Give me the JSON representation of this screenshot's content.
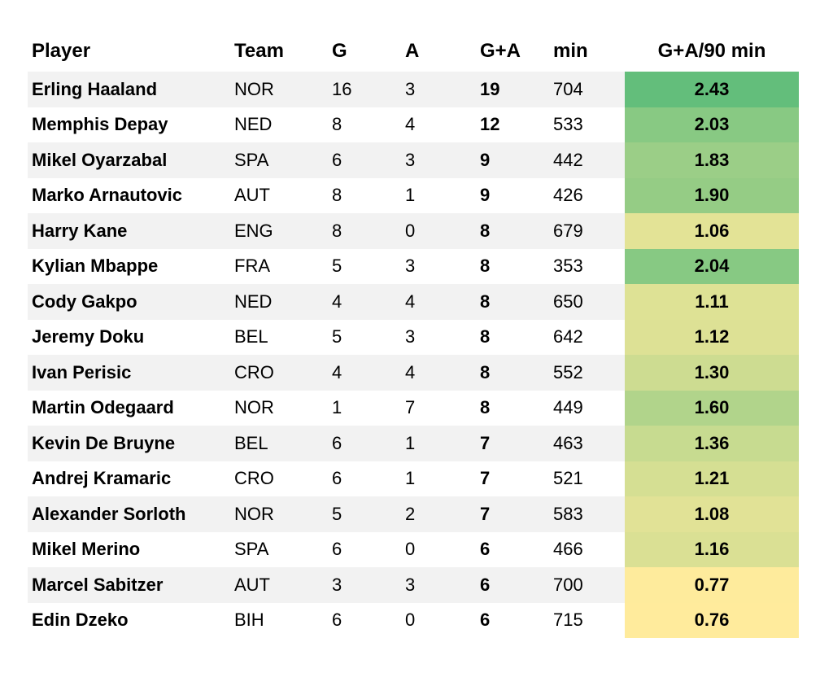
{
  "chart_data": {
    "type": "table",
    "columns": [
      "Player",
      "Team",
      "G",
      "A",
      "G+A",
      "min",
      "G+A/90 min"
    ],
    "rows": [
      [
        "Erling Haaland",
        "NOR",
        16,
        3,
        19,
        704,
        "2.43"
      ],
      [
        "Memphis Depay",
        "NED",
        8,
        4,
        12,
        533,
        "2.03"
      ],
      [
        "Mikel Oyarzabal",
        "SPA",
        6,
        3,
        9,
        442,
        "1.83"
      ],
      [
        "Marko Arnautovic",
        "AUT",
        8,
        1,
        9,
        426,
        "1.90"
      ],
      [
        "Harry Kane",
        "ENG",
        8,
        0,
        8,
        679,
        "1.06"
      ],
      [
        "Kylian Mbappe",
        "FRA",
        5,
        3,
        8,
        353,
        "2.04"
      ],
      [
        "Cody Gakpo",
        "NED",
        4,
        4,
        8,
        650,
        "1.11"
      ],
      [
        "Jeremy Doku",
        "BEL",
        5,
        3,
        8,
        642,
        "1.12"
      ],
      [
        "Ivan Perisic",
        "CRO",
        4,
        4,
        8,
        552,
        "1.30"
      ],
      [
        "Martin Odegaard",
        "NOR",
        1,
        7,
        8,
        449,
        "1.60"
      ],
      [
        "Kevin De Bruyne",
        "BEL",
        6,
        1,
        7,
        463,
        "1.36"
      ],
      [
        "Andrej Kramaric",
        "CRO",
        6,
        1,
        7,
        521,
        "1.21"
      ],
      [
        "Alexander Sorloth",
        "NOR",
        5,
        2,
        7,
        583,
        "1.08"
      ],
      [
        "Mikel Merino",
        "SPA",
        6,
        0,
        6,
        466,
        "1.16"
      ],
      [
        "Marcel Sabitzer",
        "AUT",
        3,
        3,
        6,
        700,
        "0.77"
      ],
      [
        "Edin Dzeko",
        "BIH",
        6,
        0,
        6,
        715,
        "0.76"
      ]
    ],
    "heat_column": "G+A/90 min",
    "heat_scale": {
      "low": "#ffeb9c",
      "high": "#63be7b"
    }
  }
}
